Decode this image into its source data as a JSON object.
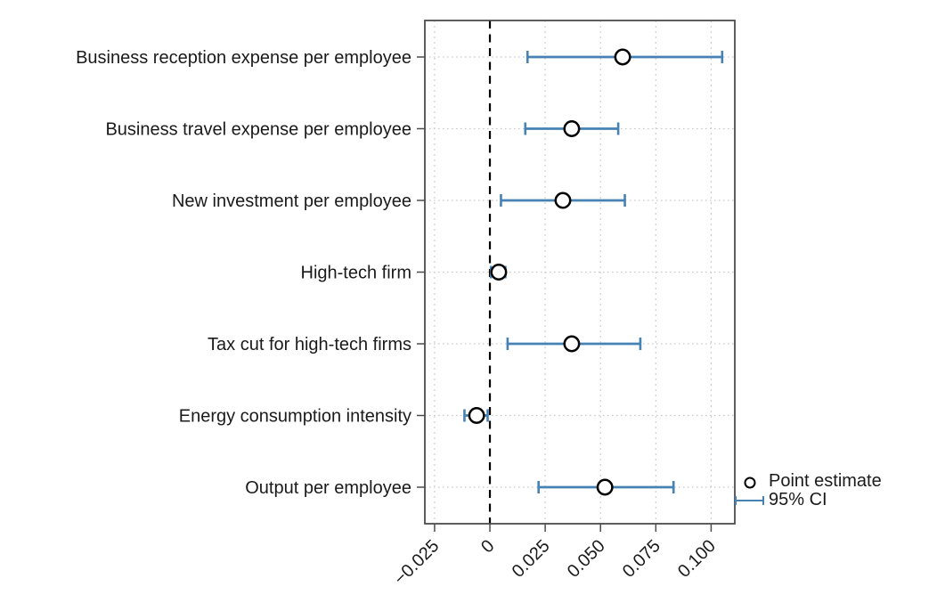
{
  "figure": {
    "background": "#ffffff"
  },
  "chart_data": {
    "type": "scatter",
    "subtype": "coefficient-plot-with-error-bars",
    "orientation": "horizontal",
    "title": "",
    "xlabel": "",
    "ylabel": "",
    "categories": [
      "Business reception expense per employee",
      "Business travel expense per employee",
      "New investment per employee",
      "High-tech firm",
      "Tax cut for high-tech firms",
      "Energy consumption intensity",
      "Output per employee"
    ],
    "series": [
      {
        "name": "Point estimate",
        "estimates": [
          0.06,
          0.037,
          0.033,
          0.004,
          0.037,
          -0.006,
          0.052
        ],
        "ci_low": [
          0.017,
          0.016,
          0.005,
          0.0005,
          0.008,
          -0.0115,
          0.022
        ],
        "ci_high": [
          0.105,
          0.058,
          0.061,
          0.007,
          0.068,
          -0.001,
          0.083
        ]
      }
    ],
    "x_ticks": [
      -0.025,
      0,
      0.025,
      0.05,
      0.075,
      0.1
    ],
    "x_tick_labels": [
      "−0.025",
      "0",
      "0.025",
      "0.050",
      "0.075",
      "0.100"
    ],
    "xlim": [
      -0.0294,
      0.1107
    ],
    "zero_reference_line": 0,
    "grid": true,
    "legend": {
      "position": "right-bottom",
      "entries": [
        {
          "label": "Point estimate",
          "marker": "open-circle"
        },
        {
          "label": "95% CI",
          "marker": "ci-line"
        }
      ]
    },
    "colors": {
      "ci": "#4682b4",
      "point_fill": "#ffffff",
      "point_stroke": "#000000",
      "zero_line": "#000000",
      "grid_h": "#c9c9c9",
      "grid_v": "#cfcfcf",
      "frame": "#4d4d4d",
      "text": "#1a1a1a"
    }
  }
}
